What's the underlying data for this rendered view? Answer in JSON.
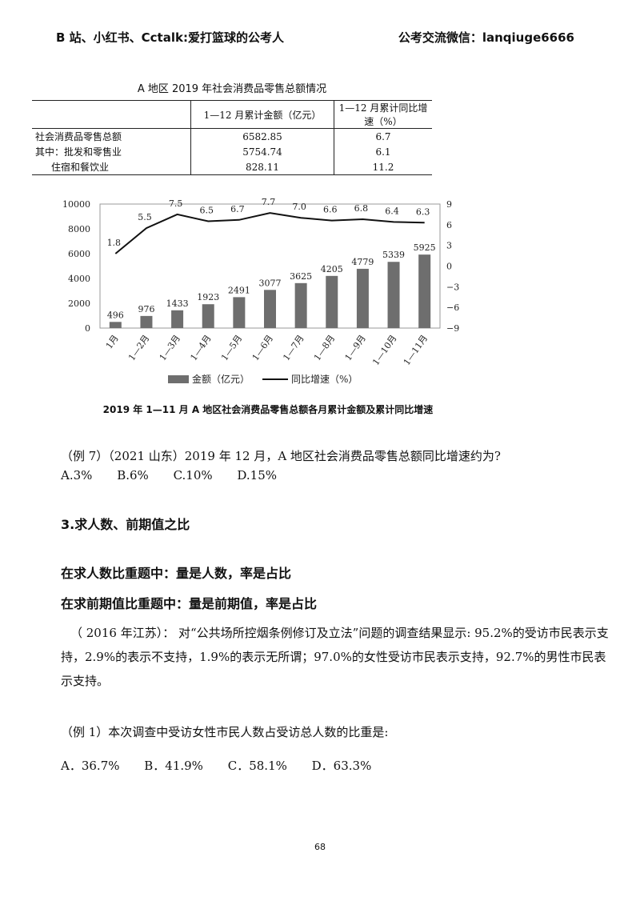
{
  "header": {
    "left": "B 站、小红书、Cctalk:爱打篮球的公考人",
    "right": "公考交流微信：lanqiuge6666"
  },
  "table": {
    "title": "A 地区 2019 年社会消费品零售总额情况",
    "headers": [
      "",
      "1—12 月累计金额（亿元）",
      "1—12 月累计同比增速（%）"
    ],
    "rows": [
      [
        "社会消费品零售总额",
        "6582.85",
        "6.7"
      ],
      [
        "其中：批发和零售业",
        "5754.74",
        "6.1"
      ],
      [
        "住宿和餐饮业",
        "828.11",
        "11.2"
      ]
    ]
  },
  "chart_data": {
    "type": "bar",
    "title": "2019 年 1—11 月 A 地区社会消费品零售总额各月累计金额及累计同比增速",
    "categories": [
      "1月",
      "1—2月",
      "1—3月",
      "1—4月",
      "1—5月",
      "1—6月",
      "1—7月",
      "1—8月",
      "1—9月",
      "1—10月",
      "1—11月"
    ],
    "series": [
      {
        "name": "金额（亿元）",
        "type": "bar",
        "axis": "left",
        "values": [
          496,
          976,
          1433,
          1923,
          2491,
          3077,
          3625,
          4205,
          4779,
          5339,
          5925
        ]
      },
      {
        "name": "同比增速（%）",
        "type": "line",
        "axis": "right",
        "values": [
          1.8,
          5.5,
          7.5,
          6.5,
          6.7,
          7.7,
          7.0,
          6.6,
          6.8,
          6.4,
          6.3
        ]
      }
    ],
    "ylim_left": [
      0,
      10000
    ],
    "yticks_left": [
      "0",
      "2000",
      "4000",
      "6000",
      "8000",
      "10000"
    ],
    "ylim_right": [
      -9,
      9
    ],
    "yticks_right": [
      "−9",
      "−6",
      "−3",
      "0",
      "3",
      "6",
      "9"
    ],
    "legend": "bottom",
    "colors": {
      "bar": "#6e6e6e",
      "line": "#111111"
    }
  },
  "question7": {
    "text": "（例 7）（2021 山东）2019 年 12 月，A 地区社会消费品零售总额同比增速约为?",
    "options": [
      "A.3%",
      "B.6%",
      "C.10%",
      "D.15%"
    ]
  },
  "section": {
    "title": "3.求人数、前期值之比",
    "rule1": "在求人数比重题中：量是人数，率是占比",
    "rule2": "在求前期值比重题中：量是前期值，率是占比"
  },
  "passage": "（ 2016 年江苏）： 对“公共场所控烟条例修订及立法”问题的调查结果显示: 95.2%的受访市民表示支持，2.9%的表示不支持，1.9%的表示无所谓；97.0%的女性受访市民表示支持，92.7%的男性市民表示支持。",
  "question1": {
    "text": "（例 1）本次调查中受访女性市民人数占受访总人数的比重是:",
    "options": [
      "A．36.7%",
      "B．41.9%",
      "C．58.1%",
      "D．63.3%"
    ]
  },
  "page_number": "68"
}
